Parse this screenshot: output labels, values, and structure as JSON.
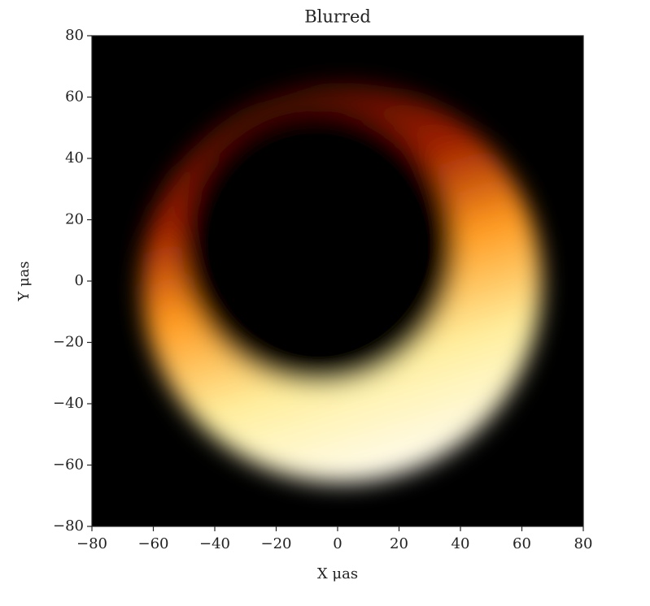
{
  "chart_data": {
    "type": "image",
    "title": "Blurred",
    "xlabel": "X μas",
    "ylabel": "Y μas",
    "xlim": [
      -80,
      80
    ],
    "ylim": [
      -80,
      80
    ],
    "xticks": [
      {
        "value": -80,
        "label": "−80"
      },
      {
        "value": -60,
        "label": "−60"
      },
      {
        "value": -40,
        "label": "−40"
      },
      {
        "value": -20,
        "label": "−20"
      },
      0,
      20,
      40,
      60,
      80
    ],
    "yticks": [
      {
        "value": -80,
        "label": "−80"
      },
      {
        "value": -60,
        "label": "−60"
      },
      {
        "value": -40,
        "label": "−40"
      },
      {
        "value": -20,
        "label": "−20"
      },
      0,
      20,
      40,
      60,
      80
    ]
  }
}
